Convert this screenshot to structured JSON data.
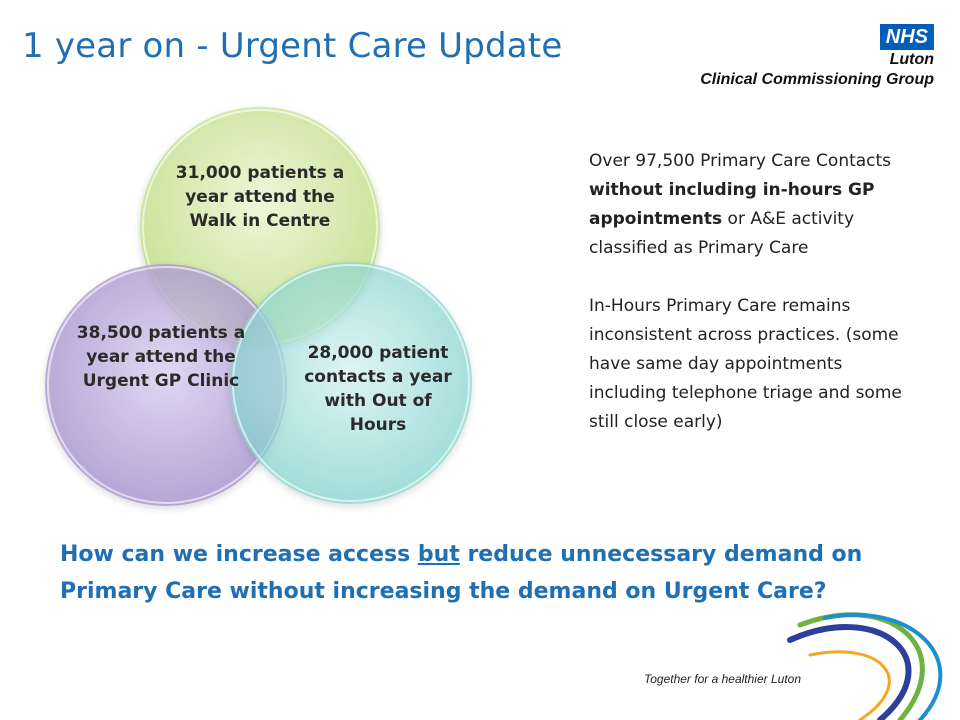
{
  "slide": {
    "title": "1 year on - Urgent Care Update",
    "logo": {
      "badge": "NHS",
      "line1": "Luton",
      "line2": "Clinical Commissioning Group"
    },
    "venn": {
      "top": "31,000 patients a year attend the Walk in Centre",
      "left": "38,500 patients a year attend the Urgent GP Clinic",
      "right": "28,000 patient contacts a year with Out of Hours",
      "colors": {
        "top": "#c9e39a",
        "left": "#a996cf",
        "right": "#7fd3cf"
      }
    },
    "right_text": {
      "p1_a": "Over 97,500 Primary Care Contacts ",
      "p1_b": "without including in-hours GP appointments",
      "p1_c": " or A&E activity classified as Primary Care",
      "p2": "In-Hours Primary Care remains inconsistent across practices. (some have same day appointments including telephone triage and some still close early)"
    },
    "question": {
      "q1": "How can we increase access ",
      "q_under": "but",
      "q2": " reduce unnecessary demand on Primary Care without increasing the demand on Urgent Care?"
    },
    "tagline": {
      "a": "Together for a ",
      "b": "healthier Luton"
    }
  }
}
